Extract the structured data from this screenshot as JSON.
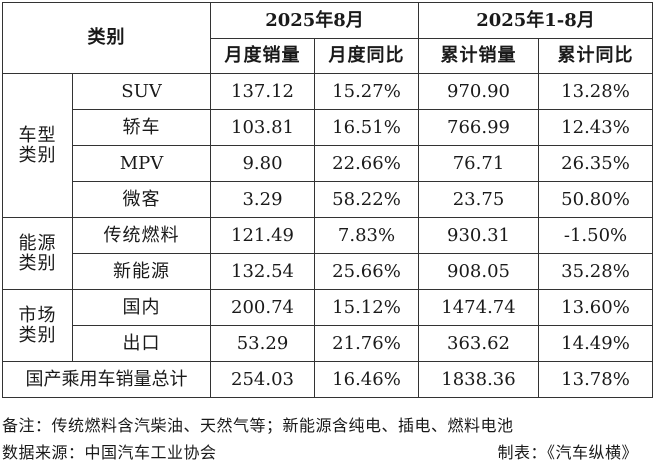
{
  "table": {
    "category_header": "类别",
    "period1": "2025年8月",
    "period2": "2025年1-8月",
    "col_month_sales": "月度销量",
    "col_month_yoy": "月度同比",
    "col_cum_sales": "累计销量",
    "col_cum_yoy": "累计同比",
    "groups": [
      {
        "label_line1": "车型",
        "label_line2": "类别",
        "rows": [
          {
            "name": "SUV",
            "month_sales": "137.12",
            "month_yoy": "15.27%",
            "cum_sales": "970.90",
            "cum_yoy": "13.28%"
          },
          {
            "name": "轿车",
            "month_sales": "103.81",
            "month_yoy": "16.51%",
            "cum_sales": "766.99",
            "cum_yoy": "12.43%"
          },
          {
            "name": "MPV",
            "month_sales": "9.80",
            "month_yoy": "22.66%",
            "cum_sales": "76.71",
            "cum_yoy": "26.35%"
          },
          {
            "name": "微客",
            "month_sales": "3.29",
            "month_yoy": "58.22%",
            "cum_sales": "23.75",
            "cum_yoy": "50.80%"
          }
        ]
      },
      {
        "label_line1": "能源",
        "label_line2": "类别",
        "rows": [
          {
            "name": "传统燃料",
            "month_sales": "121.49",
            "month_yoy": "7.83%",
            "cum_sales": "930.31",
            "cum_yoy": "-1.50%"
          },
          {
            "name": "新能源",
            "month_sales": "132.54",
            "month_yoy": "25.66%",
            "cum_sales": "908.05",
            "cum_yoy": "35.28%"
          }
        ]
      },
      {
        "label_line1": "市场",
        "label_line2": "类别",
        "rows": [
          {
            "name": "国内",
            "month_sales": "200.74",
            "month_yoy": "15.12%",
            "cum_sales": "1474.74",
            "cum_yoy": "13.60%"
          },
          {
            "name": "出口",
            "month_sales": "53.29",
            "month_yoy": "21.76%",
            "cum_sales": "363.62",
            "cum_yoy": "14.49%"
          }
        ]
      }
    ],
    "total": {
      "name": "国产乘用车销量总计",
      "month_sales": "254.03",
      "month_yoy": "16.46%",
      "cum_sales": "1838.36",
      "cum_yoy": "13.78%"
    }
  },
  "notes": {
    "remark": "备注：传统燃料含汽柴油、天然气等；新能源含纯电、插电、燃料电池",
    "source": "数据来源：中国汽车工业协会",
    "made_by": "制表：《汽车纵横》"
  }
}
